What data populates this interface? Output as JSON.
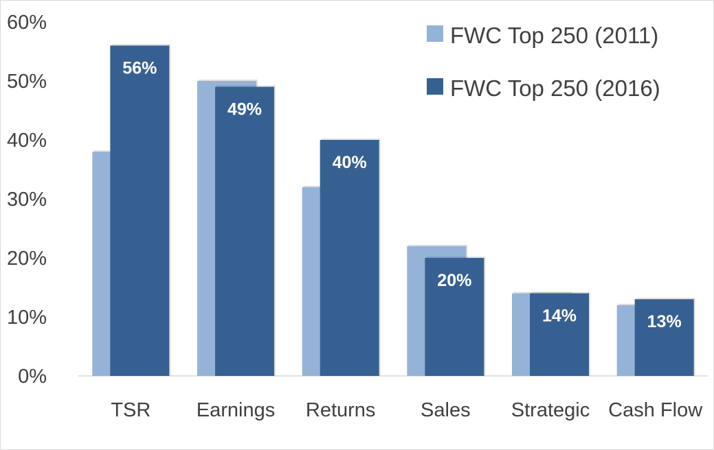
{
  "chart_data": {
    "type": "bar",
    "categories": [
      "TSR",
      "Earnings",
      "Returns",
      "Sales",
      "Strategic",
      "Cash Flow"
    ],
    "series": [
      {
        "name": "FWC Top 250 (2011)",
        "values": [
          38,
          50,
          32,
          22,
          14,
          12
        ],
        "color": "#95B3D7"
      },
      {
        "name": "FWC Top 250 (2016)",
        "values": [
          56,
          49,
          40,
          20,
          14,
          13
        ],
        "color": "#376092"
      }
    ],
    "data_labels": {
      "series_index": 1,
      "labels": [
        "56%",
        "49%",
        "40%",
        "20%",
        "14%",
        "13%"
      ]
    },
    "y_ticks": [
      "0%",
      "10%",
      "20%",
      "30%",
      "40%",
      "50%",
      "60%"
    ],
    "ylim": [
      0,
      60
    ],
    "grid": false,
    "legend_position": "top-right",
    "title": "",
    "xlabel": "",
    "ylabel": ""
  }
}
